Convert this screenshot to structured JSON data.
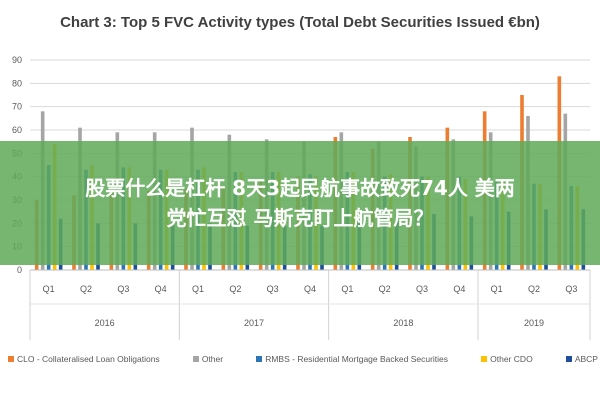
{
  "chart_data": {
    "type": "bar",
    "title": "Chart 3: Top 5 FVC Activity types (Total Debt Securities Issued €bn)",
    "categories": [
      "Q1",
      "Q2",
      "Q3",
      "Q4",
      "Q1",
      "Q2",
      "Q3",
      "Q4",
      "Q1",
      "Q2",
      "Q3",
      "Q4",
      "Q1",
      "Q2",
      "Q3"
    ],
    "groups": [
      {
        "label": "2016",
        "quarters": 4
      },
      {
        "label": "2017",
        "quarters": 4
      },
      {
        "label": "2018",
        "quarters": 4
      },
      {
        "label": "2019",
        "quarters": 3
      }
    ],
    "y_ticks": [
      "0",
      "10",
      "20",
      "30",
      "40",
      "50",
      "60",
      "70",
      "80",
      "90"
    ],
    "ylim": [
      0,
      90
    ],
    "series": [
      {
        "name": "CLO - Collateralised Loan Obligations",
        "color": "#ed7d31",
        "values": [
          30,
          32,
          33,
          34,
          35,
          36,
          38,
          40,
          57,
          52,
          57,
          61,
          68,
          75,
          83
        ]
      },
      {
        "name": "Other",
        "color": "#a5a5a5",
        "values": [
          68,
          61,
          59,
          59,
          61,
          58,
          56,
          55,
          59,
          55,
          53,
          56,
          59,
          66,
          67
        ]
      },
      {
        "name": "RMBS - Residential Mortgage Backed Securities",
        "color": "#2e75b6",
        "values": [
          45,
          43,
          44,
          43,
          43,
          42,
          42,
          41,
          42,
          40,
          40,
          40,
          38,
          37,
          36
        ]
      },
      {
        "name": "Other CDO",
        "color": "#ffc000",
        "values": [
          54,
          45,
          44,
          43,
          44,
          42,
          42,
          40,
          42,
          41,
          40,
          39,
          38,
          37,
          36
        ]
      },
      {
        "name": "ABCP",
        "color": "#1f4e9d",
        "values": [
          22,
          20,
          20,
          20,
          20,
          19,
          19,
          19,
          21,
          21,
          24,
          23,
          25,
          26,
          26
        ]
      }
    ],
    "grid": true,
    "legend_position": "bottom"
  },
  "overlay": {
    "line1": "股票什么是杠杆 8天3起民航事故致死74人 美两",
    "line2": "党忙互怼 马斯克盯上航管局？",
    "color": "#60aa5a"
  }
}
